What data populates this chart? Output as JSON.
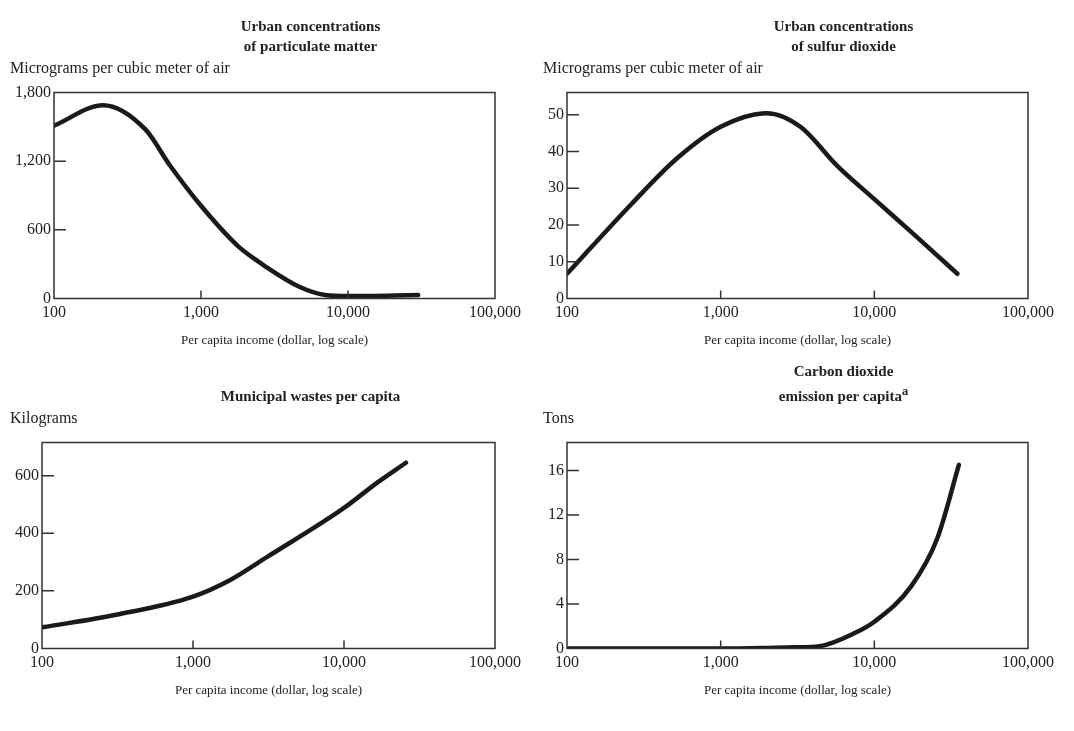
{
  "chart_data": [
    {
      "type": "line",
      "title": "Urban concentrations\nof particulate matter",
      "ylabel": "Micrograms per cubic meter of air",
      "xlabel": "Per capita income (dollar, log scale)",
      "log": "x",
      "xlim": [
        100,
        100000
      ],
      "ylim": [
        0,
        1800
      ],
      "yticks": [
        0,
        600,
        {
          "value": 1200,
          "label": "1,200"
        },
        {
          "value": 1800,
          "label": "1,800"
        }
      ],
      "x": [
        100,
        216,
        417,
        617,
        1000,
        1778,
        2818,
        4700,
        7000,
        10000,
        30000
      ],
      "xticks": [
        {
          "value": 100,
          "label": "100"
        },
        {
          "value": 1000,
          "label": "1,000"
        },
        {
          "value": 10000,
          "label": "10,000"
        },
        {
          "value": 100000,
          "label": "100,000"
        }
      ],
      "values": [
        1510,
        1690,
        1480,
        1160,
        810,
        460,
        270,
        100,
        30,
        20,
        30
      ],
      "color": "#1a1a1a"
    },
    {
      "type": "line",
      "title": "Urban concentrations\nof sulfur dioxide",
      "ylabel": "Micrograms per cubic meter of air",
      "xlabel": "Per capita income (dollar, log scale)",
      "log": "x",
      "xlim": [
        100,
        100000
      ],
      "xticks": [
        {
          "value": 100,
          "label": "100"
        },
        {
          "value": 1000,
          "label": "1,000"
        },
        {
          "value": 10000,
          "label": "10,000"
        },
        {
          "value": 100000,
          "label": "100,000"
        }
      ],
      "ylim": [
        0,
        56
      ],
      "yticks": [
        0,
        10,
        20,
        30,
        40,
        50
      ],
      "x": [
        100,
        263,
        516,
        1000,
        2000,
        3300,
        5760,
        10000,
        17800,
        34700
      ],
      "values": [
        6.7,
        25.7,
        38,
        46.7,
        50.4,
        46.7,
        36,
        27,
        17.7,
        6.7
      ],
      "color": "#1a1a1a"
    },
    {
      "type": "line",
      "title": "Municipal wastes per capita",
      "ylabel": "Kilograms",
      "xlabel": "Per capita income (dollar, log scale)",
      "log": "x",
      "xlim": [
        100,
        100000
      ],
      "xticks": [
        {
          "value": 100,
          "label": "100"
        },
        {
          "value": 1000,
          "label": "1,000"
        },
        {
          "value": 10000,
          "label": "10,000"
        },
        {
          "value": 100000,
          "label": "100,000"
        }
      ],
      "ylim": [
        0,
        715
      ],
      "yticks": [
        0,
        200,
        400,
        600
      ],
      "x": [
        100,
        311,
        1000,
        1740,
        3100,
        10000,
        16600,
        25700
      ],
      "values": [
        73,
        117,
        180,
        236,
        318,
        488,
        576,
        645
      ],
      "color": "#1a1a1a"
    },
    {
      "type": "line",
      "title": "Carbon dioxide\nemission per capita$^{a}$",
      "ylabel": "Tons",
      "xlabel": "Per capita income (dollar, log scale)",
      "log": "x",
      "xlim": [
        100,
        100000
      ],
      "xticks": [
        {
          "value": 100,
          "label": "100"
        },
        {
          "value": 1000,
          "label": "1,000"
        },
        {
          "value": 10000,
          "label": "10,000"
        },
        {
          "value": 100000,
          "label": "100,000"
        }
      ],
      "ylim": [
        0,
        18.5
      ],
      "yticks": [
        0,
        4,
        8,
        12,
        16
      ],
      "x": [
        100,
        1000,
        3000,
        4400,
        7500,
        10000,
        17400,
        25700,
        35500
      ],
      "values": [
        0,
        0,
        0.1,
        0.2,
        1.4,
        2.4,
        5.6,
        9.9,
        16.5
      ],
      "color": "#1a1a1a"
    }
  ]
}
